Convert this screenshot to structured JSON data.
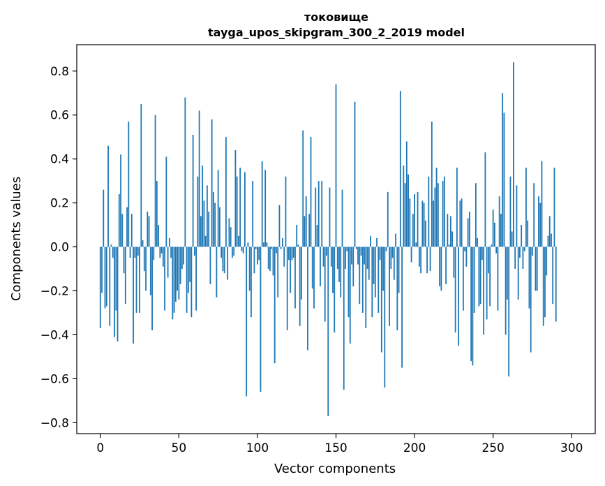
{
  "chart_data": {
    "type": "bar",
    "title": "токовище",
    "subtitle": "tayga_upos_skipgram_300_2_2019 model",
    "xlabel": "Vector components",
    "ylabel": "Components values",
    "xlim": [
      -15,
      315
    ],
    "ylim": [
      -0.85,
      0.92
    ],
    "xticks": [
      0,
      50,
      100,
      150,
      200,
      250,
      300
    ],
    "yticks": [
      -0.8,
      -0.6,
      -0.4,
      -0.2,
      0.0,
      0.2,
      0.4,
      0.6,
      0.8
    ],
    "xtick_labels": [
      "0",
      "50",
      "100",
      "150",
      "200",
      "250",
      "300"
    ],
    "ytick_labels": [
      "−0.8",
      "−0.6",
      "−0.4",
      "−0.2",
      "0.0",
      "0.2",
      "0.4",
      "0.6",
      "0.8"
    ],
    "grid": false,
    "bar_color": "#1f77b4",
    "series": [
      {
        "values": [
          -0.37,
          -0.21,
          0.26,
          -0.28,
          -0.27,
          0.46,
          -0.36,
          0.01,
          -0.05,
          -0.41,
          -0.29,
          -0.43,
          0.24,
          0.42,
          0.15,
          -0.12,
          -0.26,
          0.18,
          0.57,
          -0.05,
          0.15,
          -0.44,
          -0.05,
          -0.3,
          -0.04,
          -0.3,
          0.65,
          0.03,
          -0.11,
          -0.2,
          0.16,
          0.14,
          -0.22,
          -0.38,
          -0.06,
          0.6,
          0.3,
          0.1,
          -0.05,
          -0.03,
          -0.09,
          -0.29,
          0.41,
          -0.14,
          0.04,
          -0.05,
          -0.33,
          -0.3,
          -0.25,
          -0.2,
          -0.24,
          -0.17,
          -0.1,
          -0.08,
          0.68,
          -0.3,
          -0.21,
          -0.16,
          -0.32,
          0.51,
          -0.04,
          -0.29,
          0.32,
          0.62,
          0.14,
          0.37,
          0.21,
          0.05,
          0.28,
          0.16,
          -0.17,
          0.58,
          0.25,
          0.2,
          -0.23,
          0.35,
          0.18,
          -0.05,
          -0.11,
          -0.12,
          0.5,
          -0.15,
          0.13,
          0.09,
          -0.05,
          -0.04,
          0.44,
          0.32,
          0.05,
          0.36,
          -0.02,
          -0.03,
          0.34,
          -0.68,
          0.02,
          -0.2,
          -0.32,
          0.3,
          -0.12,
          -0.01,
          -0.08,
          -0.06,
          -0.66,
          0.39,
          0.02,
          0.35,
          0.02,
          -0.1,
          -0.11,
          -0.01,
          -0.13,
          -0.53,
          -0.03,
          -0.23,
          0.19,
          -0.01,
          0.04,
          -0.09,
          0.32,
          -0.38,
          -0.06,
          -0.21,
          -0.06,
          -0.05,
          -0.28,
          0.1,
          0.01,
          -0.36,
          -0.24,
          0.53,
          0.14,
          0.23,
          -0.47,
          0.15,
          0.5,
          -0.19,
          -0.28,
          0.27,
          0.1,
          0.3,
          -0.18,
          0.3,
          -0.09,
          -0.34,
          -0.04,
          -0.77,
          0.27,
          -0.09,
          -0.21,
          -0.39,
          0.74,
          -0.1,
          -0.16,
          -0.23,
          0.26,
          -0.65,
          -0.1,
          -0.02,
          -0.32,
          -0.44,
          -0.08,
          -0.18,
          0.66,
          -0.01,
          -0.08,
          -0.26,
          -0.04,
          -0.3,
          -0.08,
          -0.37,
          -0.1,
          -0.15,
          0.05,
          -0.32,
          -0.17,
          -0.23,
          0.04,
          -0.3,
          -0.06,
          -0.48,
          -0.2,
          -0.64,
          -0.02,
          0.25,
          -0.36,
          -0.1,
          -0.05,
          -0.15,
          0.06,
          -0.38,
          -0.21,
          0.71,
          -0.55,
          0.37,
          0.29,
          0.48,
          0.33,
          0.22,
          -0.07,
          0.15,
          0.24,
          0.02,
          0.25,
          -0.09,
          -0.12,
          0.21,
          0.2,
          0.12,
          -0.12,
          0.32,
          -0.11,
          0.57,
          0.21,
          0.27,
          0.36,
          0.29,
          -0.18,
          -0.2,
          0.3,
          0.32,
          -0.17,
          0.15,
          0.01,
          0.14,
          0.07,
          -0.14,
          -0.39,
          0.36,
          -0.45,
          0.21,
          0.22,
          -0.29,
          -0.02,
          -0.09,
          0.13,
          0.16,
          -0.52,
          -0.54,
          -0.3,
          0.29,
          0.04,
          -0.27,
          -0.26,
          -0.06,
          -0.4,
          0.43,
          -0.33,
          -0.12,
          -0.27,
          0.01,
          0.17,
          0.11,
          -0.03,
          -0.29,
          0.23,
          0.15,
          0.7,
          0.61,
          -0.4,
          -0.24,
          -0.59,
          0.32,
          0.07,
          0.84,
          -0.1,
          0.28,
          -0.24,
          -0.05,
          0.1,
          -0.1,
          -0.02,
          0.36,
          0.12,
          -0.28,
          -0.48,
          -0.04,
          0.29,
          -0.2,
          -0.2,
          0.23,
          0.2,
          0.39,
          -0.36,
          -0.32,
          -0.13,
          0.05,
          0.14,
          0.06,
          -0.26,
          0.36,
          -0.34
        ]
      }
    ]
  }
}
